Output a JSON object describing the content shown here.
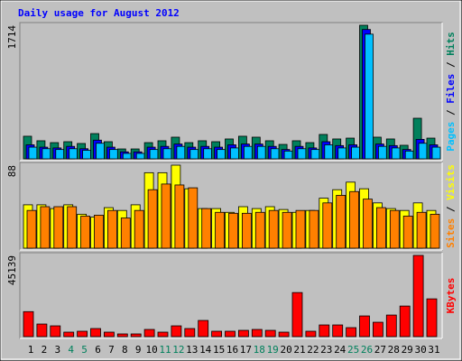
{
  "chart_data": [
    {
      "type": "bar",
      "title": "Daily usage for August 2012",
      "title_color": "#0000ff",
      "ylim": [
        0,
        1714
      ],
      "yticks": [
        1714
      ],
      "legend_separator": " / ",
      "series": [
        {
          "name": "Pages",
          "color": "#00c0ff",
          "values": [
            150,
            130,
            120,
            130,
            110,
            200,
            120,
            70,
            70,
            120,
            130,
            160,
            120,
            130,
            120,
            140,
            160,
            160,
            130,
            100,
            130,
            120,
            180,
            140,
            150,
            1600,
            160,
            140,
            100,
            200,
            150
          ]
        },
        {
          "name": "Files",
          "color": "#0000ff",
          "values": [
            180,
            150,
            140,
            160,
            130,
            240,
            150,
            90,
            90,
            150,
            160,
            190,
            150,
            160,
            150,
            180,
            190,
            190,
            160,
            120,
            160,
            140,
            220,
            170,
            180,
            1660,
            190,
            170,
            120,
            250,
            180
          ]
        },
        {
          "name": "Hits",
          "color": "#00805c",
          "values": [
            290,
            232,
            208,
            220,
            197,
            324,
            220,
            127,
            127,
            208,
            232,
            278,
            208,
            232,
            220,
            255,
            290,
            278,
            232,
            185,
            232,
            208,
            313,
            255,
            266,
            1714,
            278,
            255,
            174,
            521,
            266
          ]
        }
      ]
    },
    {
      "type": "bar",
      "ylim": [
        0,
        88
      ],
      "yticks": [
        88
      ],
      "legend_separator": " / ",
      "series": [
        {
          "name": "Sites",
          "color": "#ff8000",
          "values": [
            40,
            44,
            44,
            44,
            34,
            35,
            40,
            32,
            40,
            62,
            68,
            67,
            64,
            42,
            38,
            37,
            37,
            38,
            40,
            38,
            40,
            40,
            48,
            56,
            60,
            52,
            43,
            40,
            34,
            38,
            36
          ]
        },
        {
          "name": "Visits",
          "color": "#ffff00",
          "values": [
            46,
            46,
            42,
            46,
            36,
            33,
            43,
            40,
            46,
            80,
            80,
            88,
            63,
            42,
            42,
            38,
            44,
            42,
            44,
            41,
            38,
            40,
            53,
            62,
            70,
            63,
            48,
            42,
            40,
            48,
            40
          ]
        }
      ]
    },
    {
      "type": "bar",
      "ylim": [
        0,
        45139
      ],
      "yticks": [
        45139
      ],
      "categories": [
        "1",
        "2",
        "3",
        "4",
        "5",
        "6",
        "7",
        "8",
        "9",
        "10",
        "11",
        "12",
        "13",
        "14",
        "15",
        "16",
        "17",
        "18",
        "19",
        "20",
        "21",
        "22",
        "23",
        "24",
        "25",
        "26",
        "27",
        "28",
        "29",
        "30",
        "31"
      ],
      "category_colors": [
        "#000000",
        "#000000",
        "#000000",
        "#00805c",
        "#00805c",
        "#000000",
        "#000000",
        "#000000",
        "#000000",
        "#000000",
        "#00805c",
        "#00805c",
        "#000000",
        "#000000",
        "#000000",
        "#000000",
        "#000000",
        "#00805c",
        "#00805c",
        "#000000",
        "#000000",
        "#000000",
        "#000000",
        "#000000",
        "#00805c",
        "#00805c",
        "#000000",
        "#000000",
        "#000000",
        "#000000",
        "#000000"
      ],
      "series": [
        {
          "name": "KBytes",
          "color": "#ff0000",
          "values": [
            13900,
            7000,
            6000,
            2500,
            3000,
            4500,
            2500,
            1500,
            1500,
            4000,
            2500,
            6000,
            4500,
            9000,
            3000,
            3000,
            3500,
            4000,
            3500,
            2500,
            24500,
            3000,
            6500,
            6500,
            5000,
            11500,
            8000,
            12000,
            17000,
            45139,
            21000
          ]
        }
      ]
    }
  ]
}
